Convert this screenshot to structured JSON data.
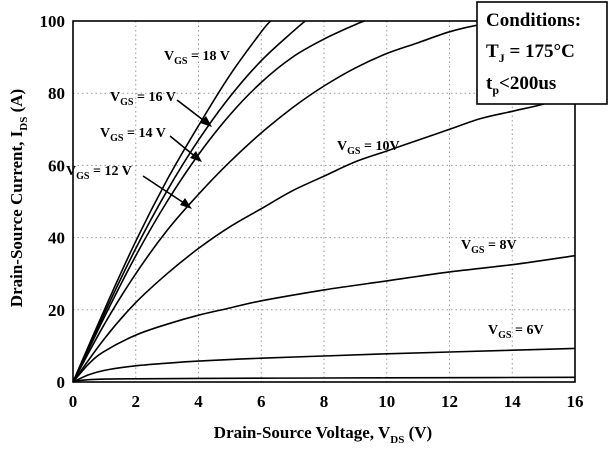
{
  "chart_data": {
    "type": "line",
    "xlabel": "Drain-Source Voltage, V",
    "xlabel_sub": "DS",
    "xlabel_unit": " (V)",
    "ylabel": "Drain-Source Current, I",
    "ylabel_sub": "DS",
    "ylabel_unit": " (A)",
    "xlim": [
      0,
      16
    ],
    "ylim": [
      0,
      100
    ],
    "xticks": [
      0,
      2,
      4,
      6,
      8,
      10,
      12,
      14,
      16
    ],
    "yticks": [
      0,
      20,
      40,
      60,
      80,
      100
    ],
    "grid": true,
    "conditions": {
      "title": "Conditions:",
      "line1_main": "T",
      "line1_sub": "J",
      "line1_rest": " = 175°C",
      "line2_main": "t",
      "line2_sub": "p",
      "line2_rest": "<200us"
    },
    "series": [
      {
        "name": "VGS = 18 V",
        "label_main": "V",
        "label_sub": "GS",
        "label_rest": " = 18 V",
        "x": [
          0,
          1,
          2,
          3,
          4,
          5,
          6,
          6.3
        ],
        "y": [
          0,
          20,
          39,
          56,
          71,
          85,
          97,
          100
        ]
      },
      {
        "name": "VGS = 16 V",
        "label_main": "V",
        "label_sub": "GS",
        "label_rest": " = 16 V",
        "x": [
          0,
          1,
          2,
          3,
          4,
          5,
          6,
          7,
          7.4
        ],
        "y": [
          0,
          19,
          37,
          53,
          67,
          79,
          89,
          97,
          100
        ]
      },
      {
        "name": "VGS = 14 V",
        "label_main": "V",
        "label_sub": "GS",
        "label_rest": " = 14 V",
        "x": [
          0,
          1,
          2,
          3,
          4,
          5,
          6,
          7,
          8,
          9,
          9.3
        ],
        "y": [
          0,
          18,
          35,
          50,
          63,
          74,
          83,
          90,
          95,
          99,
          100
        ]
      },
      {
        "name": "VGS = 12 V",
        "label_main": "V",
        "label_sub": "GS",
        "label_rest": " = 12 V",
        "x": [
          0,
          1,
          2,
          3,
          4,
          5,
          6,
          7,
          8,
          9,
          10,
          11,
          12,
          13,
          14
        ],
        "y": [
          0,
          16,
          30,
          42,
          52,
          61,
          69,
          76,
          82,
          87,
          91,
          94,
          97,
          99,
          100
        ]
      },
      {
        "name": "VGS = 10V",
        "label_main": "V",
        "label_sub": "GS",
        "label_rest": " = 10V",
        "x": [
          0,
          1,
          2,
          3,
          4,
          5,
          6,
          7,
          8,
          9,
          10,
          11,
          12,
          13,
          14,
          15,
          16
        ],
        "y": [
          0,
          12,
          22,
          30,
          37,
          43,
          48,
          53,
          57,
          61,
          64,
          67,
          70,
          73,
          75,
          77,
          80
        ]
      },
      {
        "name": "VGS = 8V",
        "label_main": "V",
        "label_sub": "GS",
        "label_rest": " = 8V",
        "x": [
          0,
          0.5,
          1,
          2,
          3,
          4,
          5,
          6,
          8,
          10,
          12,
          14,
          16
        ],
        "y": [
          0,
          5,
          8.5,
          13,
          16,
          18.5,
          20.5,
          22.5,
          25.5,
          28,
          30.5,
          32.5,
          35
        ]
      },
      {
        "name": "VGS = 6V",
        "label_main": "V",
        "label_sub": "GS",
        "label_rest": " = 6V",
        "x": [
          0,
          0.5,
          1,
          2,
          3,
          4,
          6,
          8,
          10,
          12,
          14,
          16
        ],
        "y": [
          0,
          2,
          3.2,
          4.5,
          5.2,
          5.8,
          6.6,
          7.2,
          7.8,
          8.3,
          8.8,
          9.3
        ]
      },
      {
        "name": "",
        "label_main": "",
        "label_sub": "",
        "label_rest": "",
        "x": [
          0,
          0.3,
          1,
          2,
          4,
          8,
          12,
          16
        ],
        "y": [
          0,
          0.5,
          0.8,
          0.9,
          1.0,
          1.1,
          1.2,
          1.3
        ]
      }
    ]
  }
}
